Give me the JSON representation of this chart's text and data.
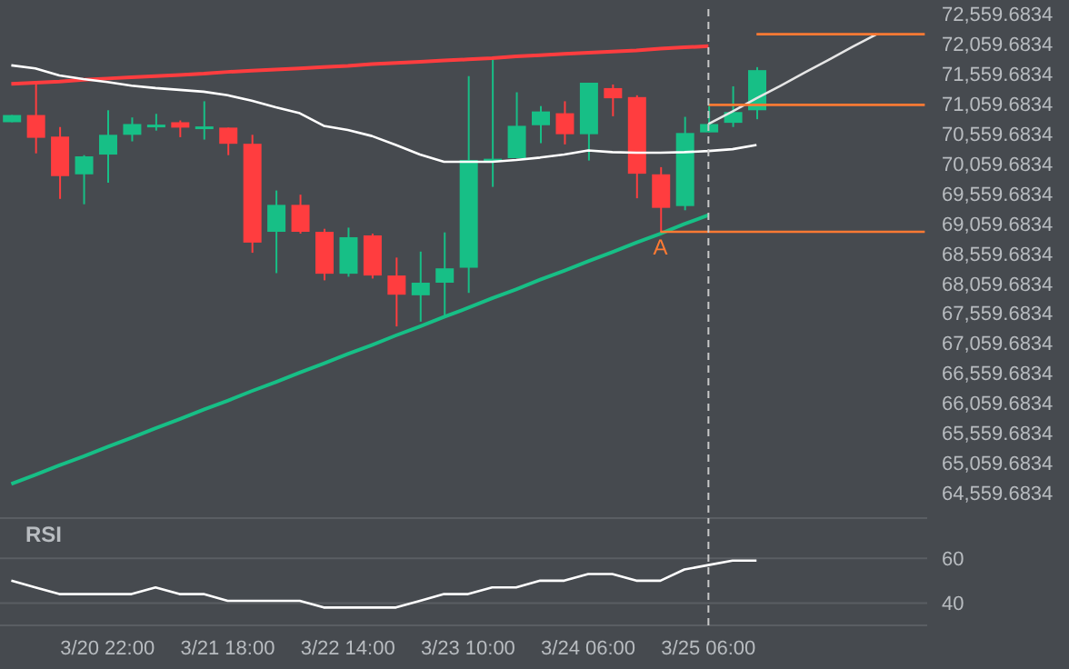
{
  "chart_data": [
    {
      "type": "candlestick",
      "categories": [
        null,
        null,
        null,
        null,
        "3/20 22:00",
        null,
        null,
        null,
        null,
        "3/21 18:00",
        null,
        null,
        null,
        null,
        "3/22 14:00",
        null,
        null,
        null,
        null,
        "3/23 10:00",
        null,
        null,
        null,
        null,
        "3/24 06:00",
        null,
        null,
        null,
        null,
        "3/25 06:00",
        null,
        null,
        null,
        null,
        null,
        null,
        null,
        null,
        null
      ],
      "ohlc": [
        [
          70750,
          70870,
          70750,
          70870
        ],
        [
          70870,
          71400,
          70230,
          70490
        ],
        [
          70510,
          70670,
          69470,
          69850
        ],
        [
          69880,
          70200,
          69380,
          70180
        ],
        [
          70210,
          70950,
          69740,
          70540
        ],
        [
          70540,
          70830,
          70430,
          70720
        ],
        [
          70700,
          70890,
          70610,
          70710
        ],
        [
          70750,
          70780,
          70500,
          70660
        ],
        [
          70670,
          71100,
          70460,
          70680
        ],
        [
          70660,
          70660,
          70200,
          70390
        ],
        [
          70390,
          70540,
          68570,
          68740
        ],
        [
          68920,
          69610,
          68230,
          69370
        ],
        [
          69370,
          69540,
          68890,
          68920
        ],
        [
          68920,
          68970,
          68110,
          68220
        ],
        [
          68220,
          68990,
          68170,
          68830
        ],
        [
          68860,
          68890,
          68140,
          68190
        ],
        [
          68190,
          68490,
          67340,
          67870
        ],
        [
          67860,
          68590,
          67420,
          68070
        ],
        [
          68070,
          68910,
          67510,
          68310
        ],
        [
          68320,
          71520,
          67900,
          70120
        ],
        [
          70130,
          71800,
          69670,
          70140
        ],
        [
          70150,
          71250,
          70150,
          70690
        ],
        [
          70700,
          71020,
          70400,
          70930
        ],
        [
          70900,
          71100,
          70380,
          70550
        ],
        [
          70550,
          71410,
          70110,
          71410
        ],
        [
          71320,
          71380,
          70850,
          71150
        ],
        [
          71170,
          71200,
          69480,
          69890
        ],
        [
          69880,
          70000,
          68920,
          69320
        ],
        [
          69350,
          70840,
          69280,
          70570
        ],
        [
          70580,
          71020,
          70580,
          70720
        ],
        [
          70740,
          71350,
          70670,
          70920
        ],
        [
          70950,
          71670,
          70800,
          71620
        ],
        null,
        null,
        null,
        null,
        null,
        null,
        null
      ],
      "colors": [
        "#17bf86",
        "#ff3d3f",
        "#ff3d3f",
        "#17bf86",
        "#17bf86",
        "#17bf86",
        "#17bf86",
        "#ff3d3f",
        "#17bf86",
        "#ff3d3f",
        "#ff3d3f",
        "#17bf86",
        "#ff3d3f",
        "#ff3d3f",
        "#17bf86",
        "#ff3d3f",
        "#ff3d3f",
        "#17bf86",
        "#17bf86",
        "#17bf86",
        "#17bf86",
        "#17bf86",
        "#17bf86",
        "#ff3d3f",
        "#17bf86",
        "#ff3d3f",
        "#ff3d3f",
        "#ff3d3f",
        "#17bf86",
        "#17bf86",
        "#17bf86",
        "#17bf86",
        null,
        null,
        null,
        null,
        null,
        null,
        null
      ],
      "series": [
        {
          "type": "line",
          "color": "#ff3d3f",
          "values": [
            71390,
            71410,
            71430,
            71460,
            71480,
            71500,
            71520,
            71540,
            71560,
            71590,
            71610,
            71630,
            71650,
            71670,
            71690,
            71720,
            71740,
            71760,
            71780,
            71800,
            71820,
            71850,
            71870,
            71890,
            71910,
            71930,
            71950,
            71980,
            72000,
            72020,
            null,
            null,
            null,
            null,
            null,
            null,
            null,
            null,
            null
          ]
        },
        {
          "type": "line",
          "color": "#17bf86",
          "values": [
            64710,
            64860,
            65020,
            65170,
            65330,
            65480,
            65640,
            65790,
            65950,
            66100,
            66260,
            66410,
            66570,
            66720,
            66880,
            67030,
            67190,
            67340,
            67500,
            67650,
            67810,
            67960,
            68120,
            68270,
            68430,
            68580,
            68740,
            68890,
            69050,
            69200,
            null,
            null,
            null,
            null,
            null,
            null,
            null,
            null,
            null
          ]
        },
        {
          "type": "line",
          "color": "#ffffff",
          "values": [
            71700,
            71650,
            71530,
            71470,
            71420,
            71360,
            71320,
            71290,
            71260,
            71200,
            71110,
            71000,
            70900,
            70690,
            70620,
            70520,
            70370,
            70210,
            70090,
            70090,
            70090,
            70120,
            70160,
            70210,
            70280,
            70250,
            70240,
            70240,
            70250,
            70270,
            70300,
            70370,
            null,
            null,
            null,
            null,
            null,
            null,
            null
          ]
        },
        {
          "type": "line",
          "color": "#e6e6e6",
          "values": [
            null,
            null,
            null,
            null,
            null,
            null,
            null,
            null,
            null,
            null,
            null,
            null,
            null,
            null,
            null,
            null,
            null,
            null,
            null,
            null,
            null,
            null,
            null,
            null,
            null,
            null,
            null,
            null,
            null,
            70720,
            70930,
            71150,
            71360,
            71580,
            71790,
            72010,
            72220,
            null,
            null
          ]
        },
        {
          "type": "line",
          "color": "#ff7a33",
          "values": [
            null,
            null,
            null,
            null,
            null,
            null,
            null,
            null,
            null,
            null,
            null,
            null,
            null,
            null,
            null,
            null,
            null,
            null,
            null,
            null,
            null,
            null,
            null,
            null,
            null,
            null,
            null,
            null,
            null,
            null,
            null,
            72220,
            72220,
            72220,
            72220,
            72220,
            72220,
            72220,
            72220
          ]
        },
        {
          "type": "line",
          "color": "#ff7a33",
          "values": [
            null,
            null,
            null,
            null,
            null,
            null,
            null,
            null,
            null,
            null,
            null,
            null,
            null,
            null,
            null,
            null,
            null,
            null,
            null,
            null,
            null,
            null,
            null,
            null,
            null,
            null,
            null,
            null,
            null,
            71040,
            71040,
            71040,
            71040,
            71040,
            71040,
            71040,
            71040,
            71040,
            71040
          ]
        },
        {
          "type": "line",
          "color": "#ff7a33",
          "values": [
            null,
            null,
            null,
            null,
            null,
            null,
            null,
            null,
            null,
            null,
            null,
            null,
            null,
            null,
            null,
            null,
            null,
            null,
            null,
            null,
            null,
            null,
            null,
            null,
            null,
            null,
            null,
            68920,
            68920,
            68920,
            68920,
            68920,
            68920,
            68920,
            68920,
            68920,
            68920,
            68920,
            68920
          ]
        }
      ],
      "annotations": [
        {
          "text": "A",
          "y": 68920
        }
      ],
      "ref_lines": [
        {
          "axis": "x",
          "value": "3/25 06:00",
          "color": "#c8c8c8",
          "line_style": "dashed"
        }
      ],
      "ylim": [
        64230,
        72700
      ],
      "yticks": [
        {
          "value": 64559.6834,
          "label": "64,559.6834"
        },
        {
          "value": 65059.6834,
          "label": "65,059.6834"
        },
        {
          "value": 65559.6834,
          "label": "65,559.6834"
        },
        {
          "value": 66059.6834,
          "label": "66,059.6834"
        },
        {
          "value": 66559.6834,
          "label": "66,559.6834"
        },
        {
          "value": 67059.6834,
          "label": "67,059.6834"
        },
        {
          "value": 67559.6834,
          "label": "67,559.6834"
        },
        {
          "value": 68059.6834,
          "label": "68,059.6834"
        },
        {
          "value": 68559.6834,
          "label": "68,559.6834"
        },
        {
          "value": 69059.6834,
          "label": "69,059.6834"
        },
        {
          "value": 69559.6834,
          "label": "69,559.6834"
        },
        {
          "value": 70059.6834,
          "label": "70,059.6834"
        },
        {
          "value": 70559.6834,
          "label": "70,559.6834"
        },
        {
          "value": 71059.6834,
          "label": "71,059.6834"
        },
        {
          "value": 71559.6834,
          "label": "71,559.6834"
        },
        {
          "value": 72059.6834,
          "label": "72,059.6834"
        },
        {
          "value": 72559.6834,
          "label": "72,559.6834"
        }
      ],
      "tick_labels": "y"
    },
    {
      "type": "line",
      "title": "RSI",
      "categories": [
        null,
        null,
        null,
        null,
        "3/20 22:00",
        null,
        null,
        null,
        null,
        "3/21 18:00",
        null,
        null,
        null,
        null,
        "3/22 14:00",
        null,
        null,
        null,
        null,
        "3/23 10:00",
        null,
        null,
        null,
        null,
        "3/24 06:00",
        null,
        null,
        null,
        null,
        "3/25 06:00",
        null,
        null,
        null,
        null,
        null,
        null,
        null,
        null,
        null
      ],
      "values": [
        50,
        47,
        44,
        44,
        44,
        44,
        47,
        44,
        44,
        41,
        41,
        41,
        41,
        38,
        38,
        38,
        38,
        41,
        44,
        44,
        47,
        47,
        50,
        50,
        53,
        53,
        50,
        50,
        55,
        57,
        59,
        59,
        null,
        null,
        null,
        null,
        null,
        null,
        null
      ],
      "color": "#ffffff",
      "ref_lines": [
        {
          "axis": "x",
          "value": "3/25 06:00",
          "color": "#c8c8c8",
          "line_style": "dashed"
        }
      ],
      "ylim": [
        30,
        78
      ],
      "yticks": [
        40,
        60
      ],
      "grid": "y"
    }
  ]
}
